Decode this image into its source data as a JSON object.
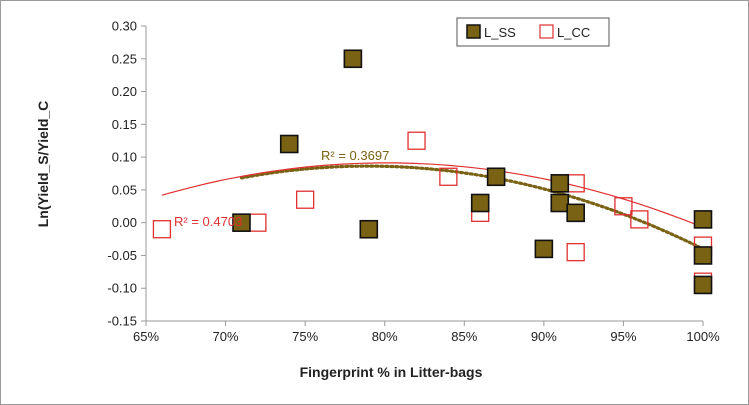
{
  "chart_data": {
    "type": "scatter",
    "xlabel": "Fingerprint % in Litter-bags",
    "ylabel": "Ln(Yield_S/Yield_C",
    "xlim": [
      65,
      100
    ],
    "ylim": [
      -0.15,
      0.3
    ],
    "x_ticks": [
      "65%",
      "70%",
      "75%",
      "80%",
      "85%",
      "90%",
      "95%",
      "100%"
    ],
    "x_tick_values": [
      65,
      70,
      75,
      80,
      85,
      90,
      95,
      100
    ],
    "y_ticks": [
      "0.30",
      "0.25",
      "0.20",
      "0.15",
      "0.10",
      "0.05",
      "0.00",
      "-0.05",
      "-0.10",
      "-0.15"
    ],
    "y_tick_values": [
      0.3,
      0.25,
      0.2,
      0.15,
      0.1,
      0.05,
      0.0,
      -0.05,
      -0.1,
      -0.15
    ],
    "grid": false,
    "legend_position": "top-right",
    "series": [
      {
        "name": "L_SS",
        "marker": "filled-square",
        "color": "#7a6214",
        "edge_color": "#111111",
        "points": [
          {
            "x": 71,
            "y": 0.0
          },
          {
            "x": 74,
            "y": 0.12
          },
          {
            "x": 78,
            "y": 0.25
          },
          {
            "x": 79,
            "y": -0.01
          },
          {
            "x": 86,
            "y": 0.03
          },
          {
            "x": 87,
            "y": 0.07
          },
          {
            "x": 90,
            "y": -0.04
          },
          {
            "x": 91,
            "y": 0.06
          },
          {
            "x": 91,
            "y": 0.03
          },
          {
            "x": 92,
            "y": 0.015
          },
          {
            "x": 100,
            "y": 0.005
          },
          {
            "x": 100,
            "y": -0.05
          },
          {
            "x": 100,
            "y": -0.095
          }
        ],
        "trendline": {
          "style": "dotted",
          "color": "#7a6214",
          "coefficients": [
            -2.85,
            4.5,
            -1.69
          ],
          "x_range": [
            71,
            100
          ],
          "r2_label": "R² = 0.3697"
        }
      },
      {
        "name": "L_CC",
        "marker": "open-square",
        "color": "#e03030",
        "points": [
          {
            "x": 66,
            "y": -0.01
          },
          {
            "x": 72,
            "y": 0.0
          },
          {
            "x": 75,
            "y": 0.035
          },
          {
            "x": 78,
            "y": 0.25
          },
          {
            "x": 82,
            "y": 0.125
          },
          {
            "x": 84,
            "y": 0.07
          },
          {
            "x": 86,
            "y": 0.015
          },
          {
            "x": 92,
            "y": 0.06
          },
          {
            "x": 92,
            "y": -0.045
          },
          {
            "x": 95,
            "y": 0.025
          },
          {
            "x": 96,
            "y": 0.005
          },
          {
            "x": 100,
            "y": -0.035
          },
          {
            "x": 100,
            "y": -0.09
          }
        ],
        "trendline": {
          "style": "solid",
          "color": "#e03030",
          "coefficients": [
            -2.4826,
            3.9772,
            -1.5017
          ],
          "x_range": [
            66,
            100
          ],
          "r2_label": "R² = 0.4703"
        }
      }
    ]
  }
}
